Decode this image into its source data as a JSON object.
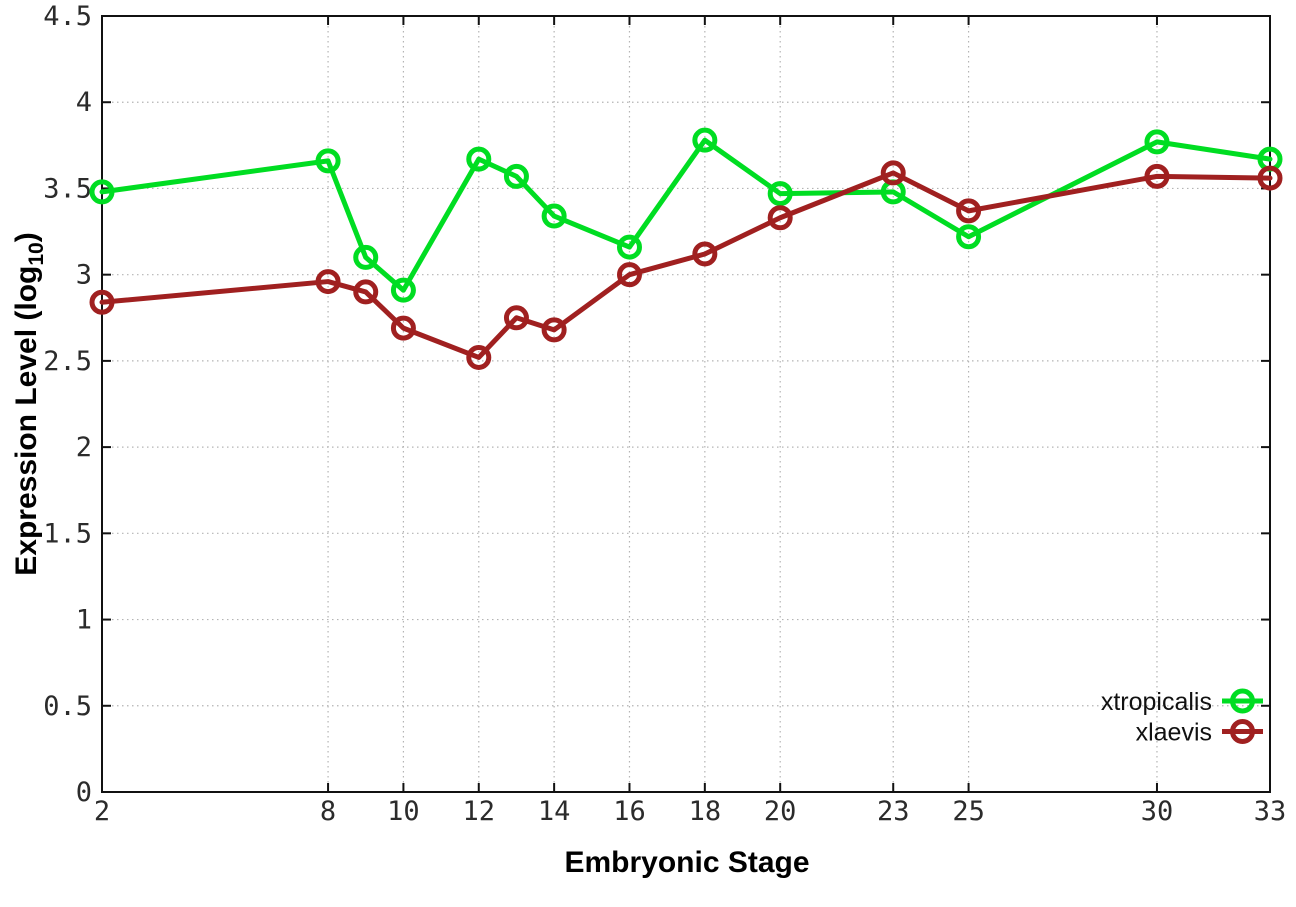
{
  "figure": {
    "background": "#ffffff",
    "xlabel": "Embryonic Stage",
    "ylabel_prefix": "Expression Level (log",
    "ylabel_sub": "10",
    "ylabel_suffix": ")"
  },
  "chart_data": {
    "type": "line",
    "title": "",
    "xlabel": "Embryonic Stage",
    "ylabel": "Expression Level (log10)",
    "x": [
      2,
      8,
      9,
      10,
      12,
      13,
      14,
      16,
      18,
      20,
      23,
      25,
      30,
      33
    ],
    "series": [
      {
        "name": "xtropicalis",
        "color": "#00dd22",
        "marker": "open-circle",
        "values": [
          3.48,
          3.66,
          3.1,
          2.91,
          3.67,
          3.57,
          3.34,
          3.16,
          3.78,
          3.47,
          3.48,
          3.22,
          3.77,
          3.67
        ]
      },
      {
        "name": "xlaevis",
        "color": "#a02020",
        "marker": "open-circle",
        "values": [
          2.84,
          2.96,
          2.9,
          2.69,
          2.52,
          2.75,
          2.68,
          3.0,
          3.12,
          3.33,
          3.59,
          3.37,
          3.57,
          3.56
        ]
      }
    ],
    "xlim": [
      2,
      33
    ],
    "ylim": [
      0,
      4.5
    ],
    "xticks": [
      2,
      8,
      10,
      12,
      14,
      16,
      18,
      20,
      23,
      25,
      30,
      33
    ],
    "yticks": [
      0,
      0.5,
      1,
      1.5,
      2,
      2.5,
      3,
      3.5,
      4,
      4.5
    ],
    "grid": true,
    "grid_color": "#b4b4b4",
    "border_color": "#111111",
    "tick_label_color": "#2b2b2b",
    "legend_position": "bottom-right"
  }
}
